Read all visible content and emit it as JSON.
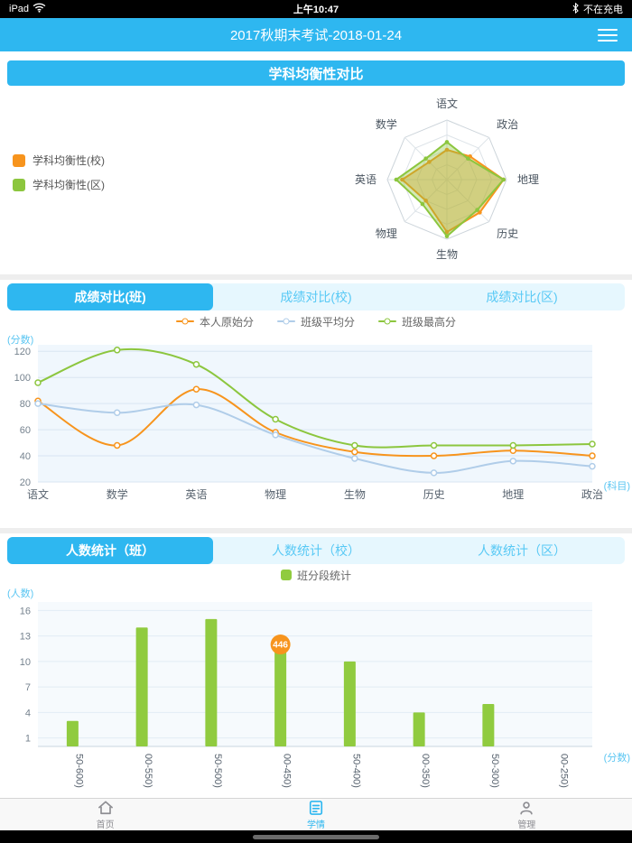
{
  "colors": {
    "primary": "#2eb7f0",
    "orange": "#f7941d",
    "green": "#8cc63e",
    "light_blue_line": "#b0cde9",
    "axis_title": "#5bc6f2"
  },
  "status_bar": {
    "device": "iPad",
    "time": "上午10:47",
    "battery_status": "不在充电"
  },
  "nav": {
    "title": "2017秋期末考试-2018-01-24"
  },
  "section_subject_balance": {
    "title": "学科均衡性对比"
  },
  "score_tabs": {
    "active_index": 0,
    "items": [
      "成绩对比(班)",
      "成绩对比(校)",
      "成绩对比(区)"
    ]
  },
  "count_tabs": {
    "active_index": 0,
    "items": [
      "人数统计（班）",
      "人数统计（校）",
      "人数统计（区）"
    ]
  },
  "chart_data": [
    {
      "id": "radar",
      "type": "radar",
      "axes": [
        "语文",
        "政治",
        "地理",
        "历史",
        "生物",
        "物理",
        "英语",
        "数学"
      ],
      "max": 100,
      "series": [
        {
          "name": "学科均衡性(校)",
          "color": "#f7941d",
          "values": [
            50,
            55,
            95,
            78,
            88,
            50,
            75,
            42
          ]
        },
        {
          "name": "学科均衡性(区)",
          "color": "#8cc63e",
          "values": [
            63,
            50,
            95,
            72,
            95,
            58,
            85,
            50
          ]
        }
      ]
    },
    {
      "id": "line",
      "type": "line",
      "title": "成绩对比(班)",
      "categories": [
        "语文",
        "数学",
        "英语",
        "物理",
        "生物",
        "历史",
        "地理",
        "政治"
      ],
      "xlabel": "(科目)",
      "ylabel": "(分数)",
      "ylim": [
        20,
        125
      ],
      "yticks": [
        20,
        40,
        60,
        80,
        100,
        120
      ],
      "series": [
        {
          "name": "本人原始分",
          "color": "#f7941d",
          "values": [
            82,
            48,
            91,
            58,
            43,
            40,
            44,
            40
          ]
        },
        {
          "name": "班级平均分",
          "color": "#b0cde9",
          "values": [
            80,
            73,
            79,
            56,
            38,
            27,
            36,
            32
          ]
        },
        {
          "name": "班级最高分",
          "color": "#8cc63e",
          "values": [
            96,
            121,
            110,
            68,
            48,
            48,
            48,
            49
          ]
        }
      ]
    },
    {
      "id": "bar",
      "type": "bar",
      "title": "人数统计（班）",
      "legend": "班分段统计",
      "categories": [
        "50-600)",
        "00-550)",
        "50-500)",
        "00-450)",
        "50-400)",
        "00-350)",
        "50-300)",
        "00-250)"
      ],
      "values": [
        3,
        14,
        15,
        12,
        10,
        4,
        5,
        0
      ],
      "color": "#90cb3f",
      "xlabel": "(分数)",
      "ylabel": "(人数)",
      "ylim": [
        0,
        17
      ],
      "yticks": [
        1,
        4,
        7,
        10,
        13,
        16
      ],
      "marker": {
        "label": "446",
        "category_index": 3,
        "color": "#f7941d"
      }
    }
  ],
  "bottom_nav": {
    "items": [
      {
        "label": "首页",
        "icon": "home-icon",
        "active": false
      },
      {
        "label": "学情",
        "icon": "report-icon",
        "active": true
      },
      {
        "label": "管理",
        "icon": "user-icon",
        "active": false
      }
    ]
  }
}
